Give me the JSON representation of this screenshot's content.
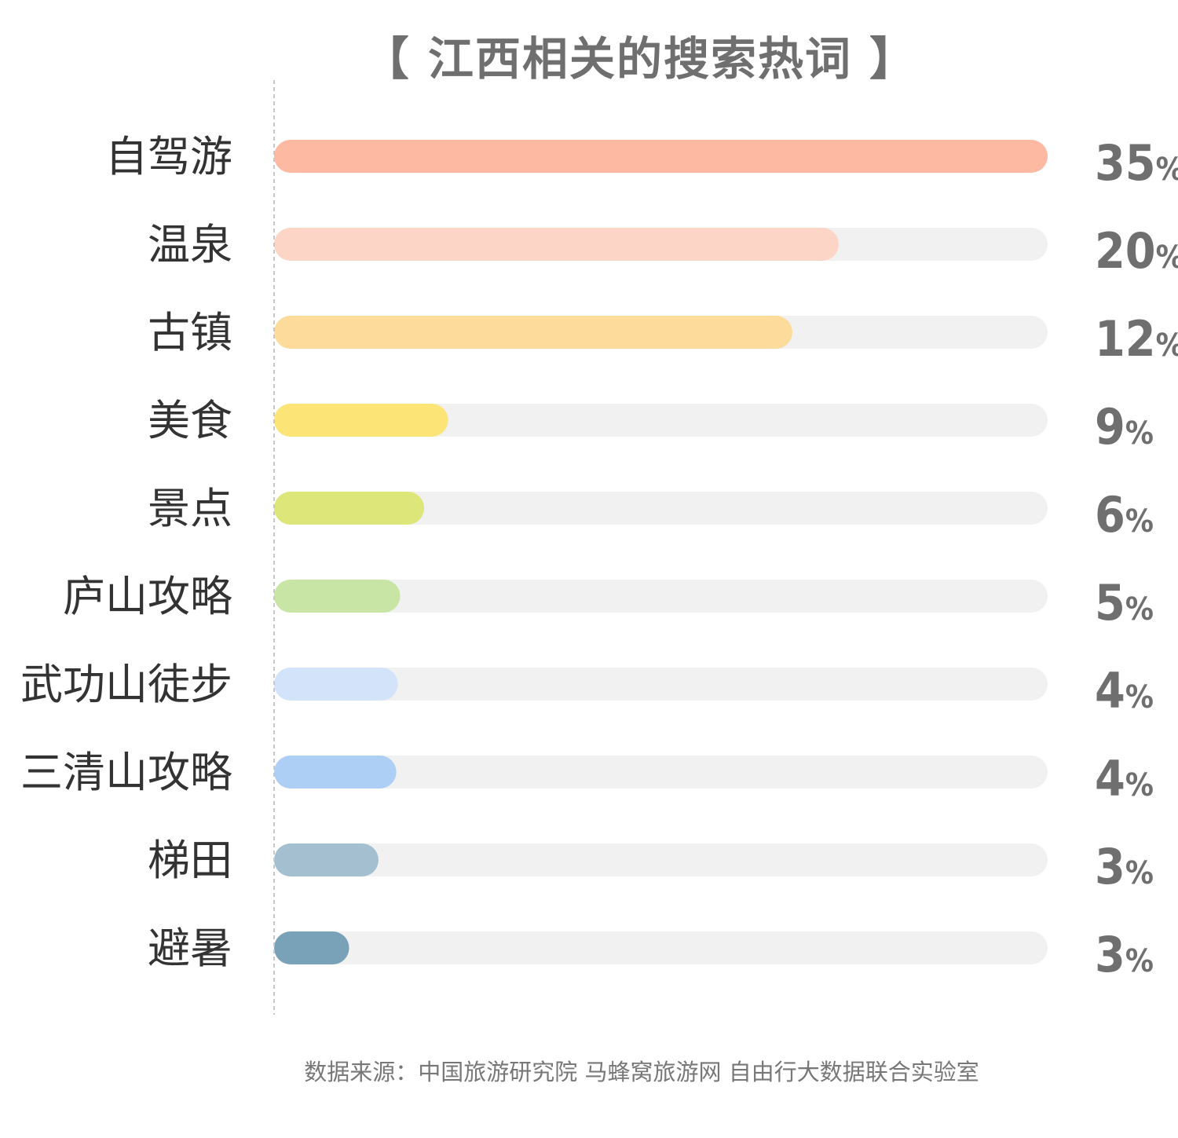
{
  "chart_data": {
    "type": "bar",
    "orientation": "horizontal",
    "title": "【 江西相关的搜索热词 】",
    "categories": [
      "自驾游",
      "温泉",
      "古镇",
      "美食",
      "景点",
      "庐山攻略",
      "武功山徒步",
      "三清山攻略",
      "梯田",
      "避暑"
    ],
    "values": [
      35,
      20,
      12,
      9,
      6,
      5,
      4,
      4,
      3,
      3
    ],
    "fill_fraction": [
      1.0,
      0.73,
      0.67,
      0.225,
      0.194,
      0.163,
      0.16,
      0.158,
      0.135,
      0.097
    ],
    "value_suffix": "%",
    "colors": [
      "#fdb9a2",
      "#fdd5c7",
      "#fddb9b",
      "#fde476",
      "#dde679",
      "#c9e5a5",
      "#d3e3fa",
      "#aecff5",
      "#a4c0d0",
      "#79a2b9"
    ],
    "track_color": "#f0f1f0",
    "axis_line_color": "#c8c8c8"
  },
  "source": "数据来源：中国旅游研究院 马蜂窝旅游网 自由行大数据联合实验室"
}
